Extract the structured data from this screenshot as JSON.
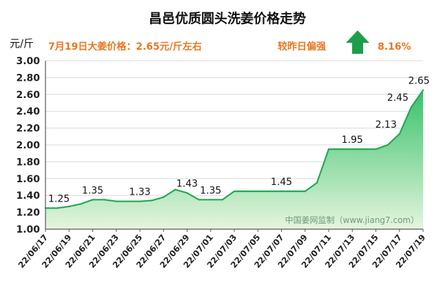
{
  "chart_data": {
    "type": "area",
    "title": "昌邑优质圆头洗姜价格走势",
    "ylabel": "元/斤",
    "ylim": [
      1.0,
      3.0
    ],
    "yticks": [
      "1.00",
      "1.20",
      "1.40",
      "1.60",
      "1.80",
      "2.00",
      "2.20",
      "2.40",
      "2.60",
      "2.80",
      "3.00"
    ],
    "xticks": [
      "22/06/17",
      "22/06/19",
      "22/06/21",
      "22/06/23",
      "22/06/25",
      "22/06/27",
      "22/06/29",
      "22/07/01",
      "22/07/03",
      "22/07/05",
      "22/07/07",
      "22/07/09",
      "22/07/11",
      "22/07/13",
      "22/07/15",
      "22/07/17",
      "22/07/19"
    ],
    "grid": true,
    "legend": "none",
    "series": [
      {
        "values": [
          [
            "22/06/17",
            1.25
          ],
          [
            "22/06/18",
            1.25
          ],
          [
            "22/06/19",
            1.27
          ],
          [
            "22/06/20",
            1.3
          ],
          [
            "22/06/21",
            1.35
          ],
          [
            "22/06/22",
            1.35
          ],
          [
            "22/06/23",
            1.33
          ],
          [
            "22/06/24",
            1.33
          ],
          [
            "22/06/25",
            1.33
          ],
          [
            "22/06/26",
            1.34
          ],
          [
            "22/06/27",
            1.38
          ],
          [
            "22/06/28",
            1.47
          ],
          [
            "22/06/29",
            1.43
          ],
          [
            "22/06/30",
            1.35
          ],
          [
            "22/07/01",
            1.35
          ],
          [
            "22/07/02",
            1.35
          ],
          [
            "22/07/03",
            1.45
          ],
          [
            "22/07/04",
            1.45
          ],
          [
            "22/07/05",
            1.45
          ],
          [
            "22/07/06",
            1.45
          ],
          [
            "22/07/07",
            1.45
          ],
          [
            "22/07/08",
            1.45
          ],
          [
            "22/07/09",
            1.45
          ],
          [
            "22/07/10",
            1.55
          ],
          [
            "22/07/11",
            1.95
          ],
          [
            "22/07/12",
            1.95
          ],
          [
            "22/07/13",
            1.95
          ],
          [
            "22/07/14",
            1.95
          ],
          [
            "22/07/15",
            1.95
          ],
          [
            "22/07/16",
            2.0
          ],
          [
            "22/07/17",
            2.13
          ],
          [
            "22/07/18",
            2.45
          ],
          [
            "22/07/19",
            2.65
          ]
        ]
      }
    ],
    "data_labels": [
      {
        "x": "22/06/17",
        "label": "1.25"
      },
      {
        "x": "22/06/21",
        "label": "1.35"
      },
      {
        "x": "22/06/25",
        "label": "1.33"
      },
      {
        "x": "22/06/29",
        "label": "1.43"
      },
      {
        "x": "22/07/01",
        "label": "1.35"
      },
      {
        "x": "22/07/07",
        "label": "1.45"
      },
      {
        "x": "22/07/13",
        "label": "1.95"
      },
      {
        "x": "22/07/17",
        "label": "2.13"
      },
      {
        "x": "22/07/18",
        "label": "2.45"
      },
      {
        "x": "22/07/19",
        "label": "2.65"
      }
    ],
    "annotations": {
      "price_note": "7月19日大姜价格：2.65元/斤左右",
      "compare_label": "较昨日偏强",
      "change_pct": "8.16%",
      "trend_icon": "up-arrow-icon"
    },
    "watermark": "中国姜网监制（www.jiang7.com）",
    "colors": {
      "line": "#22A858",
      "area_top": "#38C26A",
      "area_bottom": "#E6F5DE",
      "arrow": "#1E9E4C",
      "note": "#E87722"
    }
  }
}
